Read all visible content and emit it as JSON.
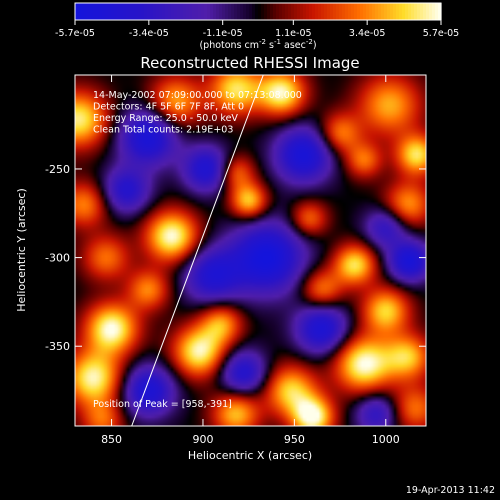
{
  "chart_data": {
    "type": "heatmap",
    "title": "Reconstructed RHESSI Image",
    "xlabel": "Heliocentric X (arcsec)",
    "ylabel": "Heliocentric Y (arcsec)",
    "xlim": [
      830,
      1022
    ],
    "ylim": [
      -395,
      -197
    ],
    "x_ticks": [
      850,
      900,
      950,
      1000
    ],
    "y_ticks": [
      -350,
      -300,
      -250
    ],
    "colorbar": {
      "ticks": [
        "-5.7e-05",
        "-3.4e-05",
        "-1.1e-05",
        "1.1e-05",
        "3.4e-05",
        "5.7e-05"
      ],
      "range": [
        -5.7e-05,
        5.7e-05
      ],
      "unit_text": "(photons cm",
      "unit_exp1": "-2",
      "unit_mid": " s",
      "unit_exp2": "-1",
      "unit_end": " asec",
      "unit_exp3": "-2",
      "unit_close": ")"
    },
    "annotations": [
      "14-May-2002 07:09:00.000 to 07:13:08.000",
      "Detectors: 4F 5F 6F 7F 8F, Att 0",
      "Energy Range: 25.0 - 50.0 keV",
      "Clean    Total counts: 2.19E+03"
    ],
    "peak_label": "Position of Peak = [958,-391]",
    "peak": [
      958,
      -391
    ],
    "limb_line": [
      [
        861,
        -395
      ],
      [
        933,
        -197
      ]
    ],
    "hotspots": [
      {
        "x": 832,
        "y": -222,
        "v": 0.9,
        "s": 11
      },
      {
        "x": 885,
        "y": -212,
        "v": 0.7,
        "s": 10
      },
      {
        "x": 918,
        "y": -205,
        "v": 0.85,
        "s": 10
      },
      {
        "x": 943,
        "y": -207,
        "v": 0.95,
        "s": 9
      },
      {
        "x": 1002,
        "y": -214,
        "v": 0.7,
        "s": 12
      },
      {
        "x": 975,
        "y": -230,
        "v": 0.6,
        "s": 8
      },
      {
        "x": 1017,
        "y": -242,
        "v": 0.85,
        "s": 8
      },
      {
        "x": 835,
        "y": -270,
        "v": 0.6,
        "s": 9
      },
      {
        "x": 883,
        "y": -288,
        "v": 1.0,
        "s": 10
      },
      {
        "x": 847,
        "y": -300,
        "v": 0.55,
        "s": 9
      },
      {
        "x": 925,
        "y": -268,
        "v": 0.8,
        "s": 7
      },
      {
        "x": 918,
        "y": -252,
        "v": 0.55,
        "s": 7
      },
      {
        "x": 958,
        "y": -278,
        "v": 0.55,
        "s": 7
      },
      {
        "x": 988,
        "y": -245,
        "v": 0.55,
        "s": 7
      },
      {
        "x": 1012,
        "y": -270,
        "v": 0.65,
        "s": 9
      },
      {
        "x": 1000,
        "y": -330,
        "v": 0.8,
        "s": 9
      },
      {
        "x": 983,
        "y": -304,
        "v": 0.85,
        "s": 8
      },
      {
        "x": 965,
        "y": -318,
        "v": 0.6,
        "s": 8
      },
      {
        "x": 850,
        "y": -340,
        "v": 1.0,
        "s": 10
      },
      {
        "x": 870,
        "y": -318,
        "v": 0.6,
        "s": 8
      },
      {
        "x": 840,
        "y": -368,
        "v": 0.95,
        "s": 11
      },
      {
        "x": 898,
        "y": -353,
        "v": 0.95,
        "s": 10
      },
      {
        "x": 910,
        "y": -337,
        "v": 0.65,
        "s": 8
      },
      {
        "x": 948,
        "y": -375,
        "v": 0.8,
        "s": 10
      },
      {
        "x": 960,
        "y": -390,
        "v": 1.0,
        "s": 8
      },
      {
        "x": 918,
        "y": -388,
        "v": 0.75,
        "s": 9
      },
      {
        "x": 988,
        "y": -360,
        "v": 1.0,
        "s": 11
      },
      {
        "x": 1012,
        "y": -356,
        "v": 0.75,
        "s": 9
      },
      {
        "x": 1016,
        "y": -385,
        "v": 0.55,
        "s": 9
      },
      {
        "x": 845,
        "y": -392,
        "v": 0.5,
        "s": 8
      },
      {
        "x": 870,
        "y": -232,
        "v": -0.9,
        "s": 11
      },
      {
        "x": 902,
        "y": -250,
        "v": -0.8,
        "s": 9
      },
      {
        "x": 955,
        "y": -242,
        "v": -0.9,
        "s": 11
      },
      {
        "x": 935,
        "y": -300,
        "v": -1.0,
        "s": 14
      },
      {
        "x": 905,
        "y": -310,
        "v": -0.75,
        "s": 11
      },
      {
        "x": 965,
        "y": -340,
        "v": -0.85,
        "s": 10
      },
      {
        "x": 1013,
        "y": -302,
        "v": -0.9,
        "s": 8
      },
      {
        "x": 870,
        "y": -375,
        "v": -0.85,
        "s": 10
      },
      {
        "x": 858,
        "y": -262,
        "v": -0.7,
        "s": 9
      },
      {
        "x": 922,
        "y": -365,
        "v": -0.75,
        "s": 9
      },
      {
        "x": 995,
        "y": -388,
        "v": -0.6,
        "s": 8
      },
      {
        "x": 1000,
        "y": -283,
        "v": -0.6,
        "s": 8
      }
    ]
  },
  "footer": {
    "date": "19-Apr-2013 11:42"
  }
}
